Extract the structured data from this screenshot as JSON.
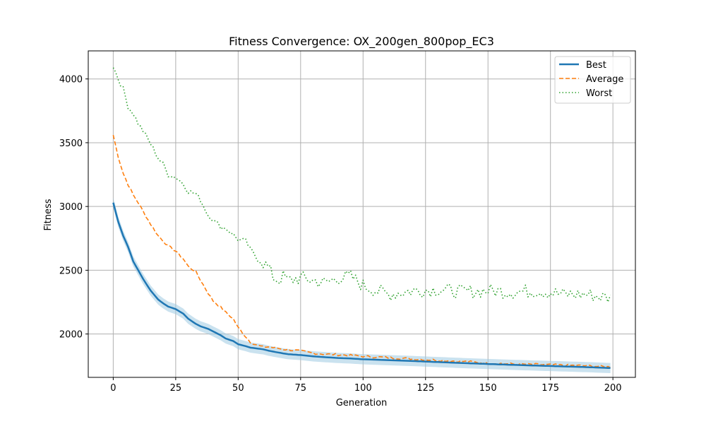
{
  "chart_data": {
    "type": "line",
    "title": "Fitness Convergence: OX_200gen_800pop_EC3",
    "xlabel": "Generation",
    "ylabel": "Fitness",
    "xlim": [
      -10,
      209
    ],
    "ylim": [
      1660,
      4220
    ],
    "xticks": [
      0,
      25,
      50,
      75,
      100,
      125,
      150,
      175,
      200
    ],
    "yticks": [
      2000,
      2500,
      3000,
      3500,
      4000
    ],
    "grid": true,
    "legend_position": "top-right",
    "x_anchors": [
      0,
      2,
      4,
      6,
      8,
      10,
      12,
      15,
      18,
      20,
      22,
      25,
      28,
      30,
      33,
      35,
      38,
      40,
      43,
      45,
      48,
      50,
      53,
      55,
      58,
      60,
      62,
      64,
      66,
      68,
      70,
      75,
      80,
      85,
      90,
      95,
      100,
      110,
      120,
      130,
      140,
      150,
      160,
      170,
      180,
      190,
      199
    ],
    "series": [
      {
        "name": "Best",
        "color": "#1f77b4",
        "style": "solid",
        "band_halfwidth": 40,
        "band_color": "#9ecae1",
        "values": [
          3030,
          2880,
          2770,
          2680,
          2570,
          2500,
          2430,
          2340,
          2270,
          2240,
          2215,
          2195,
          2160,
          2120,
          2080,
          2060,
          2040,
          2020,
          1990,
          1965,
          1945,
          1920,
          1905,
          1893,
          1885,
          1880,
          1870,
          1862,
          1855,
          1848,
          1842,
          1835,
          1825,
          1818,
          1812,
          1808,
          1802,
          1795,
          1788,
          1780,
          1772,
          1765,
          1758,
          1752,
          1746,
          1740,
          1733
        ]
      },
      {
        "name": "Average",
        "color": "#ff7f0e",
        "style": "dashed",
        "values": [
          3560,
          3390,
          3260,
          3170,
          3090,
          3030,
          2960,
          2860,
          2770,
          2730,
          2690,
          2650,
          2590,
          2530,
          2490,
          2420,
          2320,
          2260,
          2210,
          2170,
          2120,
          2050,
          1980,
          1935,
          1910,
          1898,
          1900,
          1893,
          1888,
          1880,
          1878,
          1866,
          1850,
          1842,
          1838,
          1832,
          1825,
          1815,
          1805,
          1795,
          1785,
          1772,
          1765,
          1760,
          1755,
          1750,
          1742
        ]
      },
      {
        "name": "Worst",
        "color": "#2ca02c",
        "style": "dotted",
        "values": [
          4100,
          4000,
          3920,
          3780,
          3730,
          3650,
          3590,
          3490,
          3380,
          3330,
          3250,
          3230,
          3180,
          3120,
          3100,
          3050,
          2930,
          2900,
          2840,
          2830,
          2780,
          2740,
          2730,
          2660,
          2580,
          2560,
          2520,
          2450,
          2420,
          2450,
          2420,
          2440,
          2420,
          2400,
          2440,
          2450,
          2380,
          2310,
          2340,
          2350,
          2330,
          2340,
          2330,
          2340,
          2310,
          2310,
          2280
        ]
      }
    ]
  }
}
